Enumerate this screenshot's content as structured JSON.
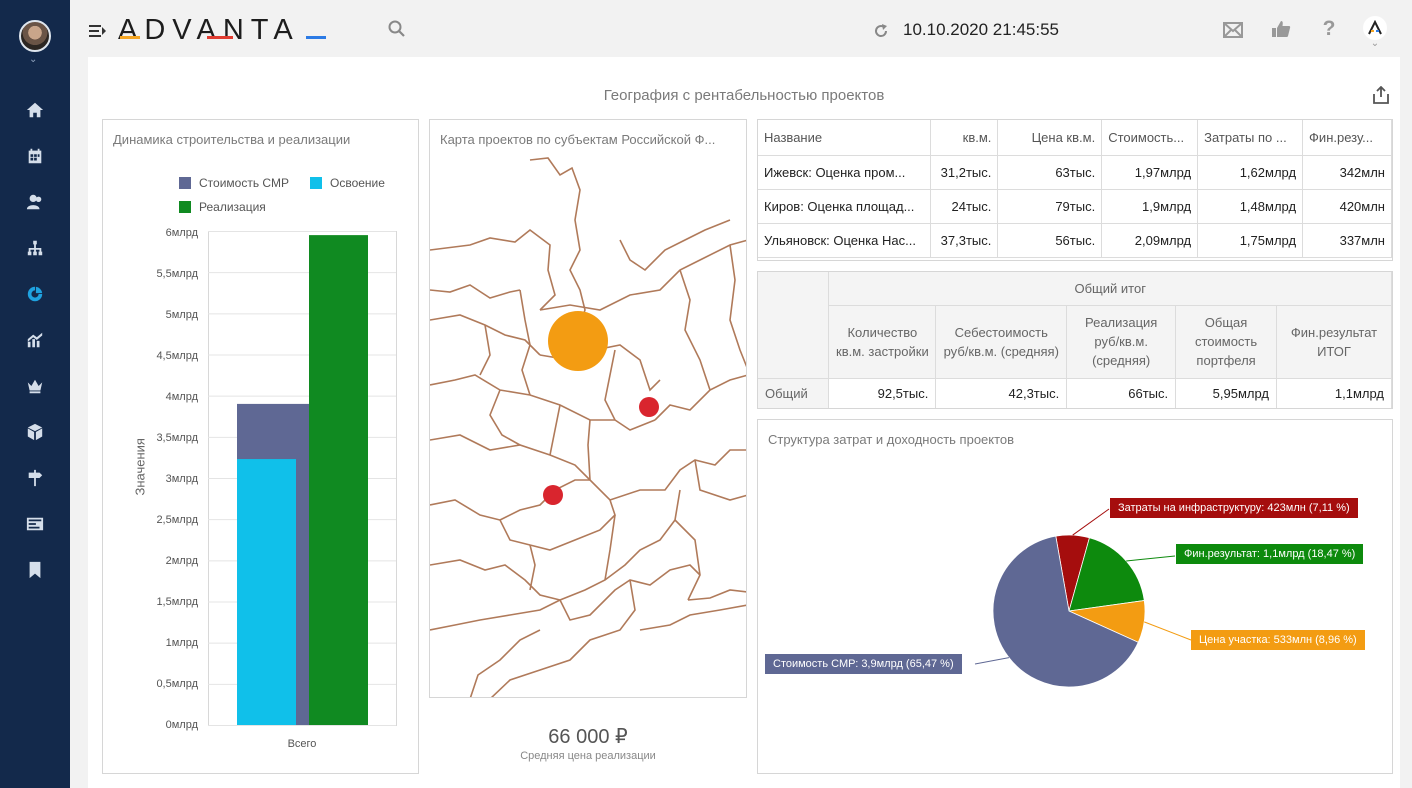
{
  "app": {
    "logo": "ADVANTA",
    "datetime": "10.10.2020 21:45:55"
  },
  "sidebar": {
    "items": [
      "home-icon",
      "calendar-icon",
      "users-icon",
      "hierarchy-icon",
      "dashboard-icon",
      "analytics-icon",
      "crown-icon",
      "box-icon",
      "signpost-icon",
      "news-icon",
      "bookmark-icon"
    ],
    "active": "dashboard-icon"
  },
  "page": {
    "title": "География с рентабельностью проектов"
  },
  "bar_panel": {
    "title": "Динамика строительства и реализации",
    "legend": [
      "Стоимость СМР",
      "Освоение",
      "Реализация"
    ],
    "ytick_labels": [
      "6млрд",
      "5,5млрд",
      "5млрд",
      "4,5млрд",
      "4млрд",
      "3,5млрд",
      "3млрд",
      "2,5млрд",
      "2млрд",
      "1,5млрд",
      "1млрд",
      "0,5млрд",
      "0млрд"
    ],
    "ylabel": "Значения",
    "xlabel": "Всего"
  },
  "chart_data": [
    {
      "type": "bar",
      "title": "Динамика строительства и реализации",
      "categories": [
        "Всего"
      ],
      "series": [
        {
          "name": "Стоимость СМР",
          "values": [
            3.9
          ],
          "color": "#5f6894"
        },
        {
          "name": "Освоение",
          "values": [
            3.23
          ],
          "color": "#10c0ea"
        },
        {
          "name": "Реализация",
          "values": [
            5.95
          ],
          "color": "#108a21"
        }
      ],
      "ylabel": "Значения",
      "ylim": [
        0,
        6
      ],
      "unit": "млрд",
      "grid": true,
      "legend_position": "top"
    },
    {
      "type": "pie",
      "title": "Структура затрат и доходность проектов",
      "slices": [
        {
          "label": "Стоимость СМР: 3,9млрд (65,47 %)",
          "value": 65.47,
          "color": "#5f6894"
        },
        {
          "label": "Цена участка: 533млн (8,96 %)",
          "value": 8.96,
          "color": "#f39c12"
        },
        {
          "label": "Фин.результат: 1,1млрд (18,47 %)",
          "value": 18.47,
          "color": "#0d8a0d"
        },
        {
          "label": "Затраты на инфраструктуру: 423млн (7,11 %)",
          "value": 7.11,
          "color": "#a50d0d"
        }
      ]
    }
  ],
  "map_panel": {
    "title": "Карта проектов по субъектам Российской Ф..."
  },
  "kpi": {
    "value": "66 000 ₽",
    "label": "Средняя цена реализации"
  },
  "projects_table": {
    "columns": [
      "Название",
      "кв.м.",
      "Цена кв.м.",
      "Стоимость...",
      "Затраты по ...",
      "Фин.резу..."
    ],
    "rows": [
      [
        "Ижевск: Оценка пром...",
        "31,2тыс.",
        "63тыс.",
        "1,97млрд",
        "1,62млрд",
        "342млн"
      ],
      [
        "Киров: Оценка площад...",
        "24тыс.",
        "79тыс.",
        "1,9млрд",
        "1,48млрд",
        "420млн"
      ],
      [
        "Ульяновск: Оценка Нас...",
        "37,3тыс.",
        "56тыс.",
        "2,09млрд",
        "1,75млрд",
        "337млн"
      ]
    ]
  },
  "summary_table": {
    "group_header": "Общий итог",
    "columns": [
      "Количество кв.м. застройки",
      "Себестоимость руб/кв.м. (средняя)",
      "Реализация руб/кв.м. (средняя)",
      "Общая стоимость портфеля",
      "Фин.результат ИТОГ"
    ],
    "row_label": "Общий",
    "values": [
      "92,5тыс.",
      "42,3тыс.",
      "66тыс.",
      "5,95млрд",
      "1,1млрд"
    ]
  },
  "pie_panel": {
    "title": "Структура затрат и доходность проектов"
  }
}
